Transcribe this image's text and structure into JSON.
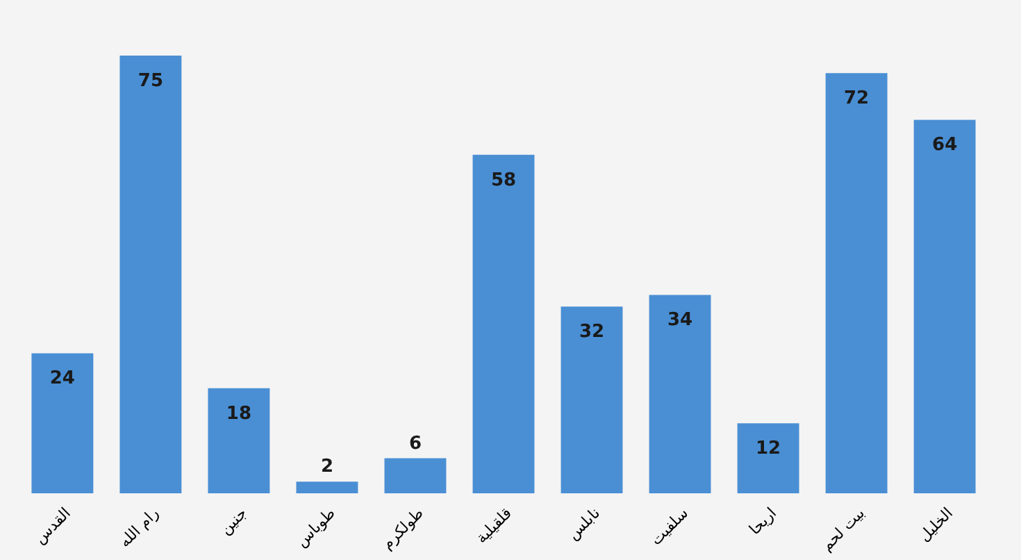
{
  "chart_data": {
    "type": "bar",
    "categories": [
      "القدس",
      "رام الله",
      "جنين",
      "طوباس",
      "طولكرم",
      "قلقيلية",
      "نابلس",
      "سلفيت",
      "اريحا",
      "بيت لحم",
      "الخليل"
    ],
    "values": [
      24,
      75,
      18,
      2,
      6,
      58,
      32,
      34,
      12,
      72,
      64
    ],
    "color": "#4a8fd4",
    "data_labels": true,
    "grid": false
  }
}
